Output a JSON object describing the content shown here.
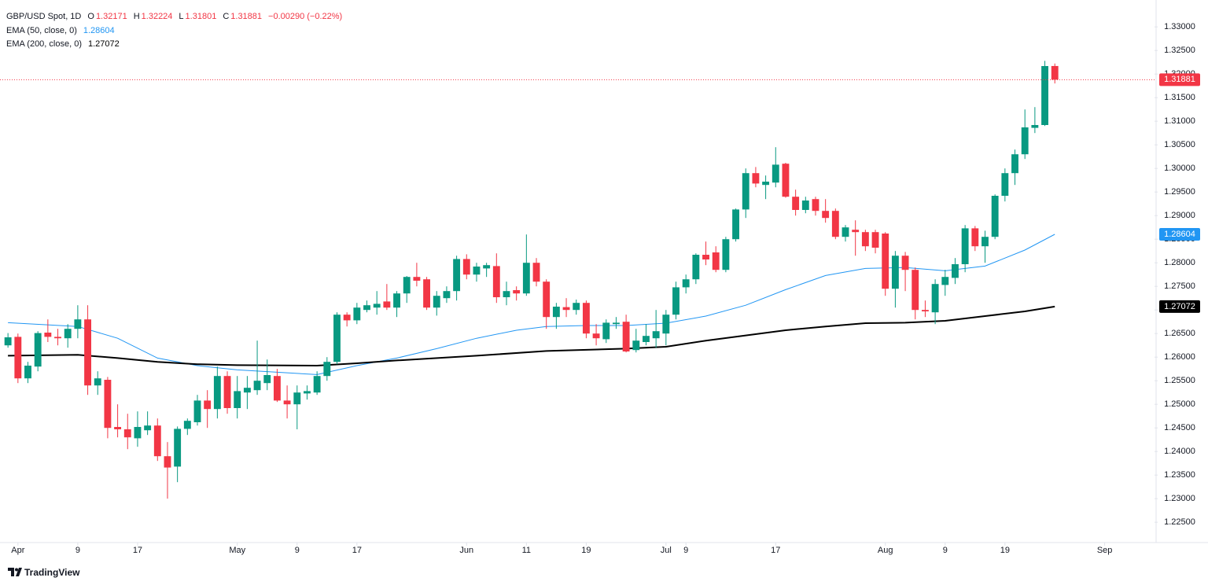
{
  "chart_data": {
    "type": "candlestick",
    "title": "GBP/USD Spot, 1D",
    "ohlc_prefixes": [
      "O",
      "H",
      "L",
      "C"
    ],
    "change_label": "−0.00290 (−0.22%)",
    "brand": "TradingView",
    "up_color": "#089981",
    "down_color": "#f23645",
    "candles": {
      "open": [
        1.2625,
        1.2643,
        1.2555,
        1.258,
        1.2652,
        1.2643,
        1.264,
        1.266,
        1.268,
        1.254,
        1.2552,
        1.2452,
        1.2447,
        1.2428,
        1.2445,
        1.2455,
        1.239,
        1.2368,
        1.2448,
        1.2462,
        1.2508,
        1.249,
        1.256,
        1.2492,
        1.2525,
        1.253,
        1.2545,
        1.256,
        1.2508,
        1.25,
        1.2523,
        1.2525,
        1.256,
        1.259,
        1.269,
        1.2678,
        1.27,
        1.2705,
        1.2718,
        1.2705,
        1.2735,
        1.277,
        1.2765,
        1.2705,
        1.2725,
        1.274,
        1.2808,
        1.2775,
        1.2788,
        1.2793,
        1.2727,
        1.2742,
        1.2735,
        1.28,
        1.276,
        1.2685,
        1.2706,
        1.27,
        1.2715,
        1.265,
        1.2638,
        1.267,
        1.2675,
        1.2615,
        1.2632,
        1.264,
        1.265,
        1.269,
        1.2748,
        1.2765,
        1.2817,
        1.2822,
        1.2785,
        1.285,
        1.2913,
        1.299,
        1.2965,
        1.297,
        1.301,
        1.294,
        1.2912,
        1.2935,
        1.291,
        1.291,
        1.2855,
        1.287,
        1.2865,
        1.2865,
        1.2862,
        1.2745,
        1.2815,
        1.2785,
        1.27,
        1.2695,
        1.2753,
        1.2768,
        1.2797,
        1.2873,
        1.2835,
        1.2855,
        1.2942,
        1.299,
        1.303,
        1.3086,
        1.3092,
        1.32171
      ],
      "high": [
        1.2651,
        1.265,
        1.259,
        1.2655,
        1.268,
        1.266,
        1.267,
        1.271,
        1.271,
        1.257,
        1.2558,
        1.25,
        1.248,
        1.2485,
        1.2485,
        1.247,
        1.242,
        1.2453,
        1.247,
        1.252,
        1.253,
        1.258,
        1.257,
        1.256,
        1.256,
        1.2635,
        1.2595,
        1.2575,
        1.254,
        1.254,
        1.254,
        1.257,
        1.26,
        1.2695,
        1.2695,
        1.2715,
        1.272,
        1.274,
        1.2755,
        1.274,
        1.2772,
        1.28,
        1.277,
        1.274,
        1.275,
        1.2815,
        1.2818,
        1.28,
        1.28,
        1.282,
        1.276,
        1.275,
        1.286,
        1.281,
        1.2765,
        1.2715,
        1.2725,
        1.2722,
        1.272,
        1.267,
        1.268,
        1.2685,
        1.269,
        1.266,
        1.267,
        1.27,
        1.27,
        1.276,
        1.2775,
        1.282,
        1.2845,
        1.2835,
        1.2855,
        1.2915,
        1.3,
        1.3003,
        1.2985,
        1.3045,
        1.3012,
        1.2955,
        1.294,
        1.294,
        1.2935,
        1.2915,
        1.288,
        1.289,
        1.287,
        1.287,
        1.2865,
        1.2825,
        1.2823,
        1.279,
        1.272,
        1.2765,
        1.2785,
        1.281,
        1.288,
        1.2878,
        1.2868,
        1.2945,
        1.3,
        1.304,
        1.3125,
        1.313,
        1.3228,
        1.32224
      ],
      "low": [
        1.262,
        1.2545,
        1.2545,
        1.257,
        1.2632,
        1.2625,
        1.262,
        1.264,
        1.252,
        1.252,
        1.2428,
        1.243,
        1.2405,
        1.241,
        1.2435,
        1.238,
        1.23,
        1.2335,
        1.2435,
        1.2455,
        1.245,
        1.247,
        1.248,
        1.247,
        1.249,
        1.252,
        1.253,
        1.2505,
        1.247,
        1.2447,
        1.251,
        1.252,
        1.255,
        1.2585,
        1.2665,
        1.267,
        1.2695,
        1.269,
        1.27,
        1.2685,
        1.2715,
        1.275,
        1.27,
        1.2688,
        1.2715,
        1.272,
        1.2765,
        1.276,
        1.277,
        1.2715,
        1.271,
        1.272,
        1.273,
        1.275,
        1.266,
        1.266,
        1.2685,
        1.269,
        1.264,
        1.2625,
        1.263,
        1.266,
        1.261,
        1.261,
        1.2625,
        1.262,
        1.2625,
        1.268,
        1.2735,
        1.2755,
        1.2795,
        1.278,
        1.278,
        1.2845,
        1.2895,
        1.296,
        1.2935,
        1.296,
        1.2938,
        1.29,
        1.2905,
        1.29,
        1.2885,
        1.285,
        1.2845,
        1.2815,
        1.2825,
        1.282,
        1.273,
        1.2705,
        1.274,
        1.268,
        1.2685,
        1.267,
        1.273,
        1.2755,
        1.278,
        1.2825,
        1.28,
        1.285,
        1.293,
        1.2965,
        1.302,
        1.3075,
        1.309,
        1.31801
      ],
      "close": [
        1.2642,
        1.2555,
        1.2582,
        1.2651,
        1.2643,
        1.264,
        1.266,
        1.268,
        1.254,
        1.2555,
        1.245,
        1.2447,
        1.243,
        1.2452,
        1.2455,
        1.239,
        1.2366,
        1.2448,
        1.2465,
        1.2508,
        1.249,
        1.256,
        1.2492,
        1.2528,
        1.2535,
        1.255,
        1.2562,
        1.2508,
        1.25,
        1.2525,
        1.2528,
        1.256,
        1.259,
        1.269,
        1.2678,
        1.2705,
        1.271,
        1.2713,
        1.2705,
        1.2735,
        1.277,
        1.2762,
        1.2705,
        1.273,
        1.274,
        1.2808,
        1.2775,
        1.2792,
        1.2795,
        1.2727,
        1.274,
        1.2735,
        1.28,
        1.276,
        1.2685,
        1.2707,
        1.27,
        1.2715,
        1.265,
        1.264,
        1.2673,
        1.2673,
        1.2612,
        1.2635,
        1.2645,
        1.2655,
        1.269,
        1.2748,
        1.2765,
        1.2817,
        1.2807,
        1.2785,
        1.285,
        1.2913,
        1.299,
        1.2968,
        1.2972,
        1.3008,
        1.294,
        1.2912,
        1.2932,
        1.291,
        1.2895,
        1.2855,
        1.2875,
        1.2865,
        1.2835,
        1.2832,
        1.2745,
        1.2815,
        1.2785,
        1.27,
        1.2697,
        1.2755,
        1.277,
        1.2797,
        1.2873,
        1.2835,
        1.2855,
        1.2942,
        1.299,
        1.303,
        1.3087,
        1.3092,
        1.3217,
        1.31881
      ]
    },
    "series": [
      {
        "name": "EMA (50, close, 0)",
        "color": "#2196f3",
        "x": [
          0,
          7,
          11,
          15,
          19,
          23,
          27,
          31,
          35,
          39,
          43,
          47,
          51,
          54,
          58,
          62,
          66,
          70,
          74,
          78,
          82,
          86,
          90,
          94,
          98,
          102,
          105
        ],
        "values": [
          1.2673,
          1.2665,
          1.264,
          1.2598,
          1.2582,
          1.2573,
          1.2568,
          1.2563,
          1.2582,
          1.2598,
          1.2618,
          1.264,
          1.2657,
          1.2665,
          1.2667,
          1.2667,
          1.2672,
          1.2687,
          1.271,
          1.2743,
          1.2773,
          1.2788,
          1.279,
          1.2783,
          1.2793,
          1.2827,
          1.28604
        ]
      },
      {
        "name": "EMA (200, close, 0)",
        "color": "#000000",
        "x": [
          0,
          7,
          11,
          15,
          19,
          23,
          31,
          35,
          39,
          47,
          54,
          62,
          66,
          70,
          78,
          82,
          86,
          90,
          94,
          98,
          102,
          105
        ],
        "values": [
          1.2603,
          1.2605,
          1.2598,
          1.259,
          1.2585,
          1.2583,
          1.2582,
          1.2587,
          1.2593,
          1.2603,
          1.2613,
          1.2618,
          1.2622,
          1.2635,
          1.2657,
          1.2665,
          1.2672,
          1.2673,
          1.2677,
          1.2687,
          1.2697,
          1.27072
        ]
      }
    ],
    "xlim": [
      -0.8,
      115
    ],
    "xticks": [
      {
        "value": 1,
        "label": "Apr"
      },
      {
        "value": 7,
        "label": "9"
      },
      {
        "value": 13,
        "label": "17"
      },
      {
        "value": 23,
        "label": "May"
      },
      {
        "value": 29,
        "label": "9"
      },
      {
        "value": 35,
        "label": "17"
      },
      {
        "value": 46,
        "label": "Jun"
      },
      {
        "value": 52,
        "label": "11"
      },
      {
        "value": 58,
        "label": "19"
      },
      {
        "value": 66,
        "label": "Jul"
      },
      {
        "value": 68,
        "label": "9"
      },
      {
        "value": 77,
        "label": "17"
      },
      {
        "value": 88,
        "label": "Aug"
      },
      {
        "value": 94,
        "label": "9"
      },
      {
        "value": 100,
        "label": "19"
      },
      {
        "value": 110,
        "label": "Sep"
      }
    ],
    "ylim": [
      1.2207,
      1.3357
    ],
    "yticks": [
      {
        "value": 1.33,
        "label": "1.33000"
      },
      {
        "value": 1.325,
        "label": "1.32500"
      },
      {
        "value": 1.32,
        "label": "1.32000"
      },
      {
        "value": 1.315,
        "label": "1.31500"
      },
      {
        "value": 1.31,
        "label": "1.31000"
      },
      {
        "value": 1.305,
        "label": "1.30500"
      },
      {
        "value": 1.3,
        "label": "1.30000"
      },
      {
        "value": 1.295,
        "label": "1.29500"
      },
      {
        "value": 1.29,
        "label": "1.29000"
      },
      {
        "value": 1.285,
        "label": "1.28500"
      },
      {
        "value": 1.28,
        "label": "1.28000"
      },
      {
        "value": 1.275,
        "label": "1.27500"
      },
      {
        "value": 1.27,
        "label": "1.27000"
      },
      {
        "value": 1.265,
        "label": "1.26500"
      },
      {
        "value": 1.26,
        "label": "1.26000"
      },
      {
        "value": 1.255,
        "label": "1.25500"
      },
      {
        "value": 1.25,
        "label": "1.25000"
      },
      {
        "value": 1.245,
        "label": "1.24500"
      },
      {
        "value": 1.24,
        "label": "1.24000"
      },
      {
        "value": 1.235,
        "label": "1.23500"
      },
      {
        "value": 1.23,
        "label": "1.23000"
      },
      {
        "value": 1.225,
        "label": "1.22500"
      }
    ],
    "grid": false
  }
}
